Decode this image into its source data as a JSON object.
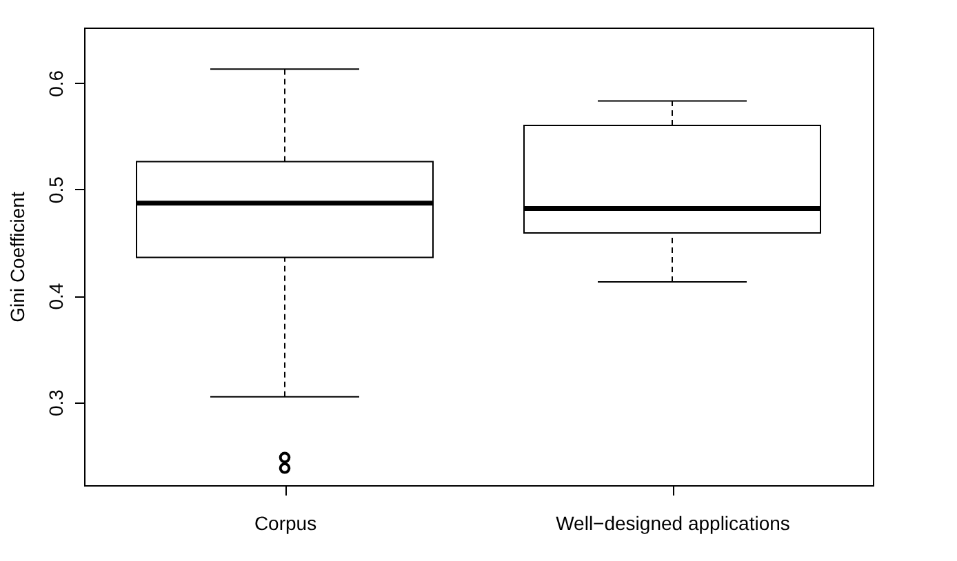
{
  "chart_data": {
    "type": "box",
    "ylabel": "Gini Coefficient",
    "categories": [
      "Corpus",
      "Well−designed applications"
    ],
    "boxes": [
      {
        "low": 0.305,
        "q1": 0.436,
        "median": 0.487,
        "q3": 0.526,
        "high": 0.613,
        "outliers": [
          0.248,
          0.238
        ]
      },
      {
        "low": 0.413,
        "q1": 0.459,
        "median": 0.482,
        "q3": 0.56,
        "high": 0.583
      }
    ],
    "ylim": [
      0.222,
      0.652
    ],
    "yticks": [
      0.3,
      0.4,
      0.5,
      0.6
    ],
    "grid": false,
    "line_style": "dashed",
    "marker": "circle"
  }
}
